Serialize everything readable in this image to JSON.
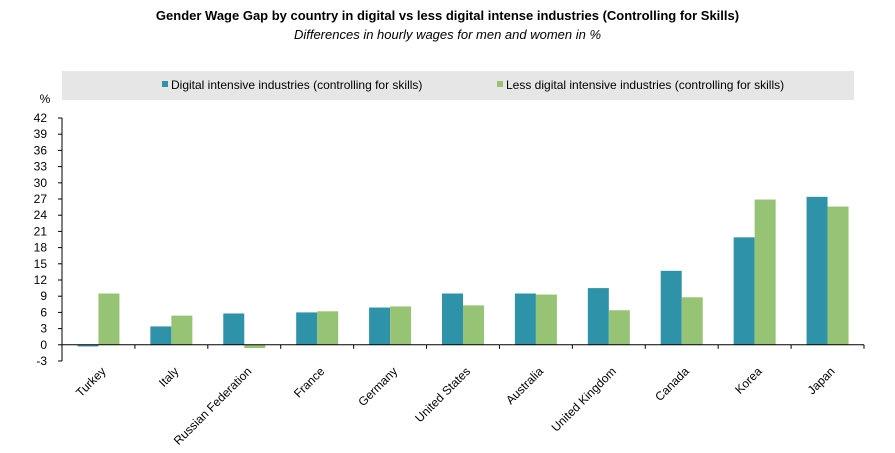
{
  "chart_data": {
    "type": "bar",
    "title": "Gender Wage Gap by country in digital vs less digital intense industries (Controlling for Skills)",
    "subtitle": "Differences in hourly wages for men and women in %",
    "ylabel": "%",
    "xlabel": "",
    "ylim": [
      -3,
      42
    ],
    "yticks": [
      -3,
      0,
      3,
      6,
      9,
      12,
      15,
      18,
      21,
      24,
      27,
      30,
      33,
      36,
      39,
      42
    ],
    "legend_position": "top",
    "grid": false,
    "categories": [
      "Turkey",
      "Italy",
      "Russian Federation",
      "France",
      "Germany",
      "United States",
      "Australia",
      "United Kingdom",
      "Canada",
      "Korea",
      "Japan"
    ],
    "series": [
      {
        "name": "Digital intensive industries (controlling for skills)",
        "color": "#2E93A8",
        "values": [
          -0.3,
          3.4,
          5.8,
          6.0,
          6.9,
          9.5,
          9.5,
          10.5,
          13.7,
          19.9,
          27.4
        ]
      },
      {
        "name": "Less digital intensive industries (controlling for skills)",
        "color": "#97C374",
        "values": [
          9.5,
          5.4,
          -0.6,
          6.2,
          7.1,
          7.3,
          9.3,
          6.4,
          8.8,
          26.9,
          25.6
        ]
      }
    ]
  }
}
